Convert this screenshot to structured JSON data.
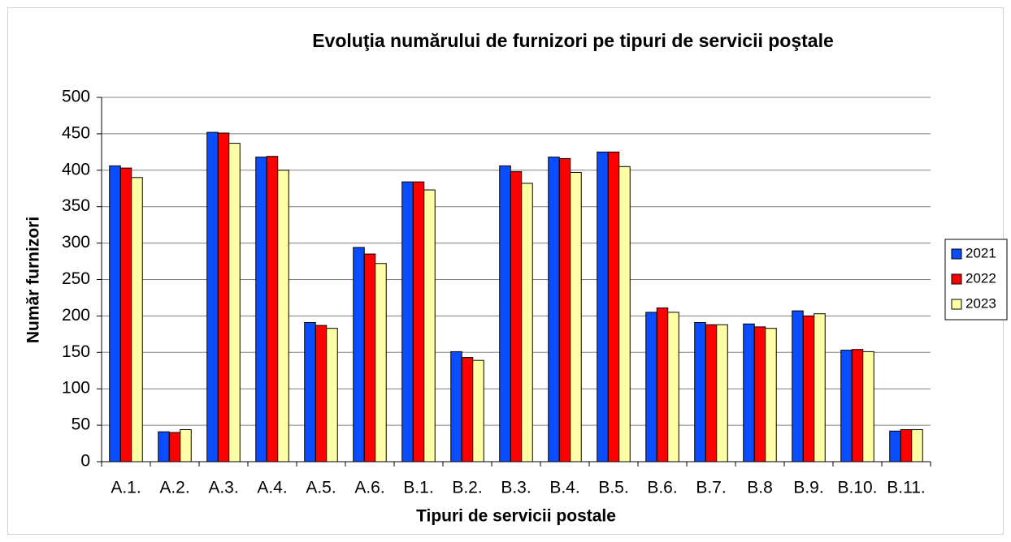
{
  "chart_data": {
    "type": "bar",
    "title": "Evoluţia numărului de furnizori pe tipuri de servicii poştale",
    "x_label": "Tipuri de servicii postale",
    "y_label": "Număr furnizori",
    "categories": [
      "A.1.",
      "A.2.",
      "A.3.",
      "A.4.",
      "A.5.",
      "A.6.",
      "B.1.",
      "B.2.",
      "B.3.",
      "B.4.",
      "B.5.",
      "B.6.",
      "B.7.",
      "B.8",
      "B.9.",
      "B.10.",
      "B.11."
    ],
    "series": [
      {
        "name": "2021",
        "color": "#0a4dff",
        "values": [
          406,
          41,
          452,
          418,
          191,
          294,
          384,
          151,
          406,
          418,
          425,
          205,
          191,
          189,
          207,
          153,
          42
        ]
      },
      {
        "name": "2022",
        "color": "#ff0000",
        "values": [
          403,
          40,
          451,
          419,
          187,
          285,
          384,
          143,
          398,
          416,
          425,
          211,
          188,
          185,
          200,
          154,
          44
        ]
      },
      {
        "name": "2023",
        "color": "#ffffa6",
        "values": [
          390,
          44,
          437,
          400,
          183,
          272,
          373,
          139,
          382,
          397,
          405,
          205,
          188,
          183,
          203,
          151,
          44
        ]
      }
    ],
    "ylim": [
      0,
      500
    ],
    "yticks": [
      0,
      50,
      100,
      150,
      200,
      250,
      300,
      350,
      400,
      450,
      500
    ],
    "grid": true,
    "legend": "right"
  }
}
